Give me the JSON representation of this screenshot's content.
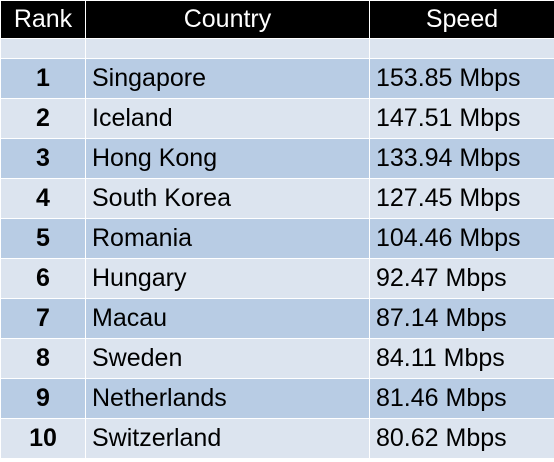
{
  "headers": {
    "rank": "Rank",
    "country": "Country",
    "speed": "Speed"
  },
  "rows": [
    {
      "rank": "1",
      "country": "Singapore",
      "speed": "153.85 Mbps"
    },
    {
      "rank": "2",
      "country": "Iceland",
      "speed": "147.51 Mbps"
    },
    {
      "rank": "3",
      "country": "Hong Kong",
      "speed": "133.94 Mbps"
    },
    {
      "rank": "4",
      "country": "South Korea",
      "speed": "127.45 Mbps"
    },
    {
      "rank": "5",
      "country": "Romania",
      "speed": "104.46 Mbps"
    },
    {
      "rank": "6",
      "country": "Hungary",
      "speed": "92.47 Mbps"
    },
    {
      "rank": "7",
      "country": "Macau",
      "speed": "87.14 Mbps"
    },
    {
      "rank": "8",
      "country": "Sweden",
      "speed": "84.11 Mbps"
    },
    {
      "rank": "9",
      "country": "Netherlands",
      "speed": "81.46 Mbps"
    },
    {
      "rank": "10",
      "country": "Switzerland",
      "speed": "80.62 Mbps"
    }
  ],
  "colors": {
    "header_bg": "#000000",
    "header_text": "#ffffff",
    "row_dark": "#b8cce4",
    "row_light": "#dce4ef"
  }
}
